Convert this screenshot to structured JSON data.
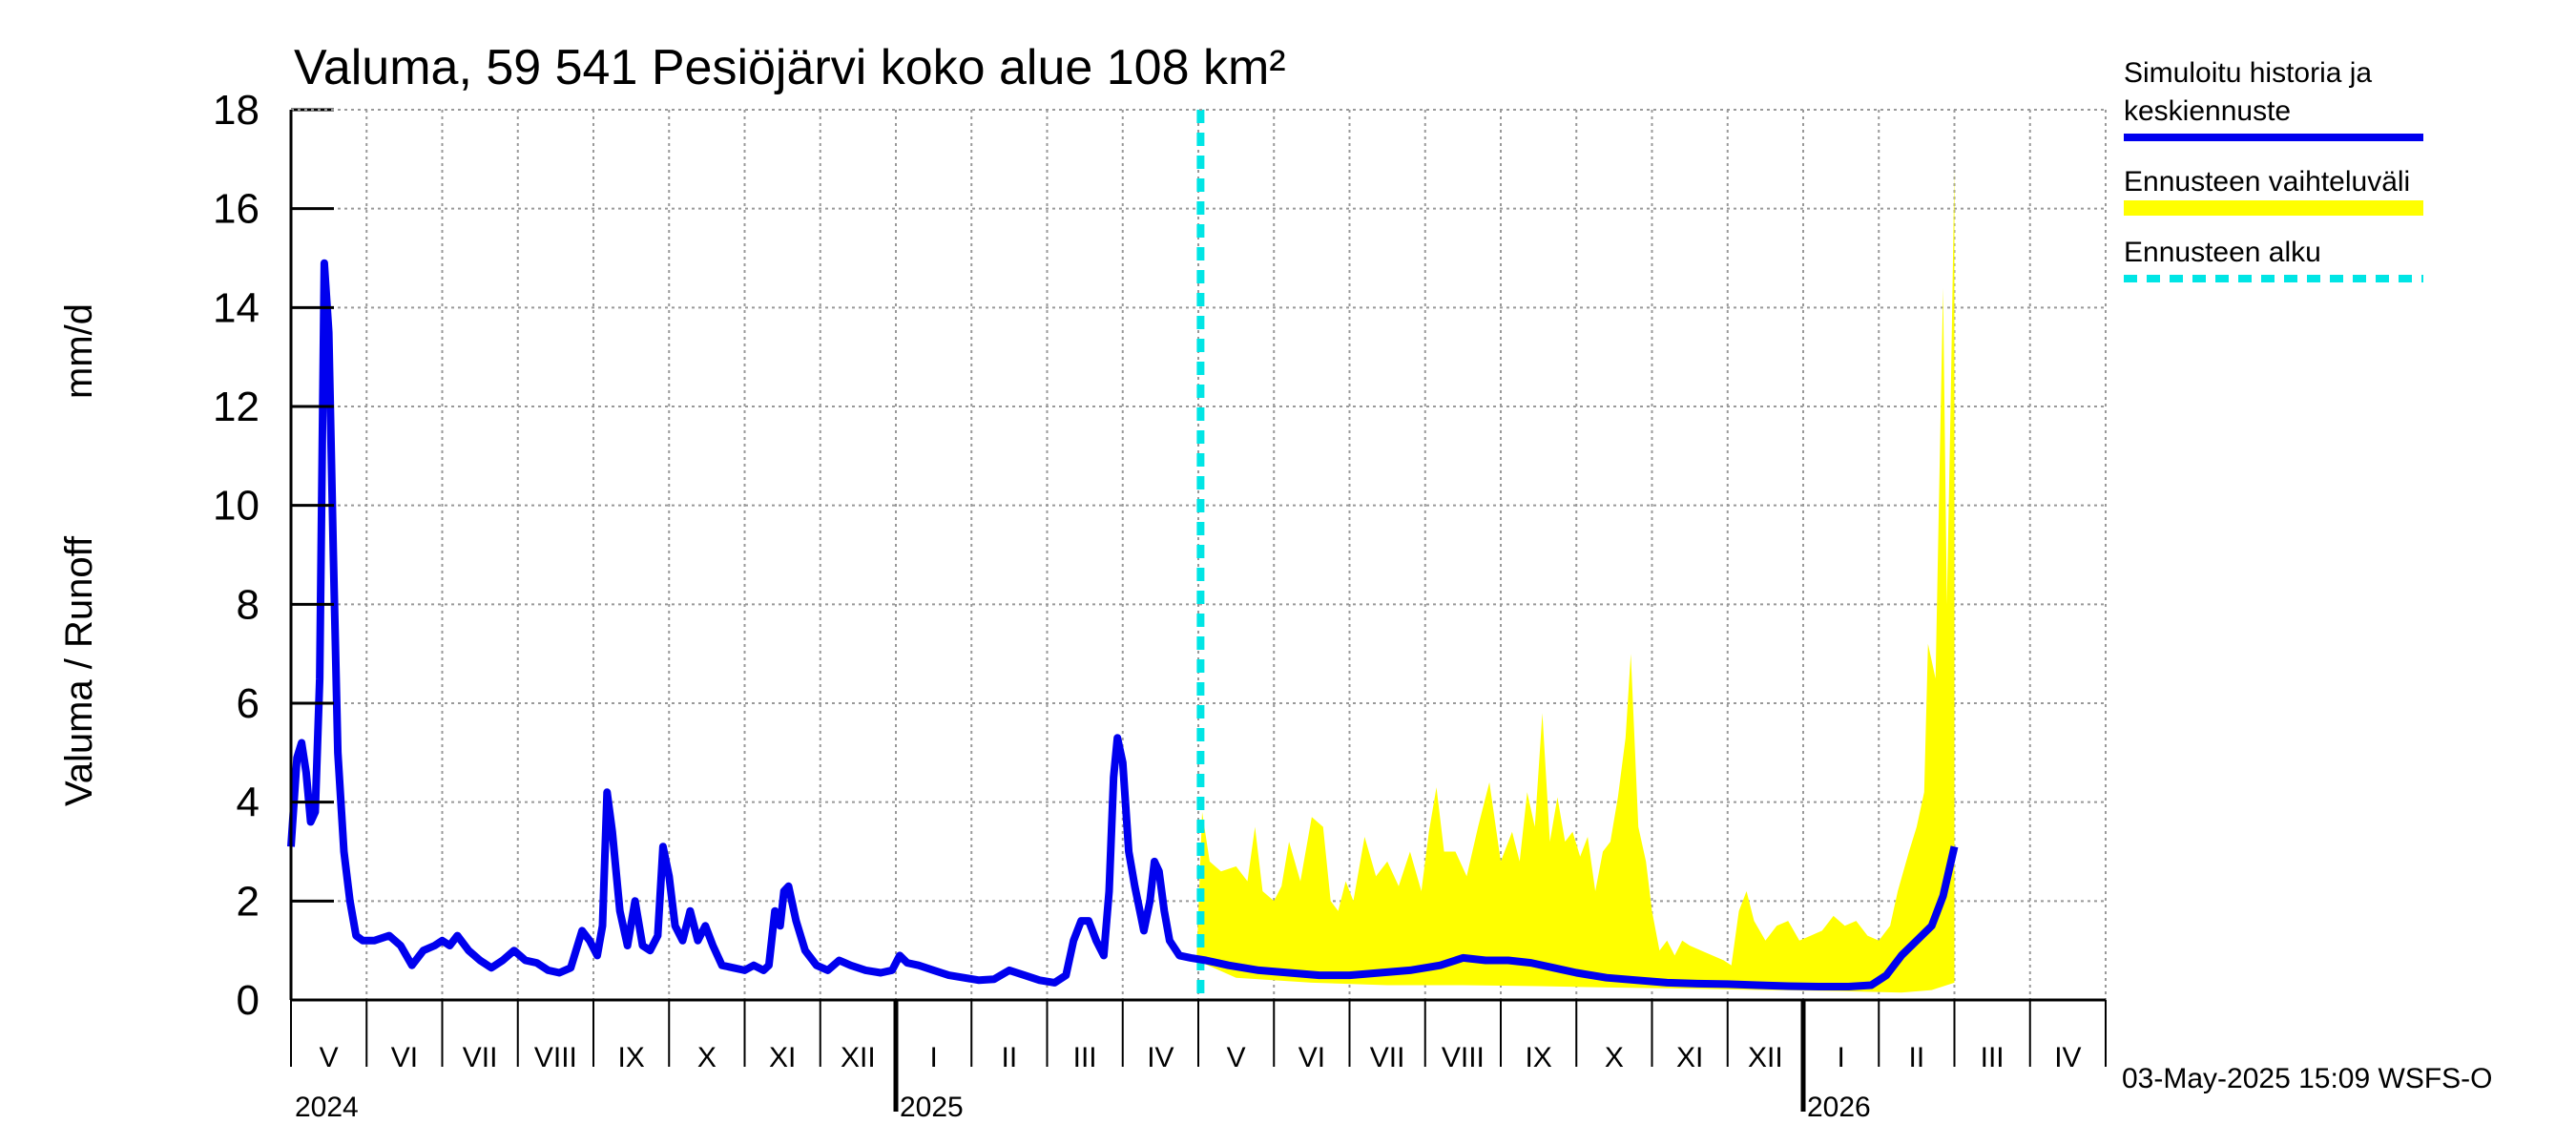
{
  "chart_data": {
    "type": "line",
    "title": "Valuma, 59 541 Pesiöjärvi koko alue 108 km²",
    "ylabel_left": "Valuma / Runoff",
    "ylabel_right": "mm/d",
    "ylim": [
      0,
      18
    ],
    "yticks": [
      "0",
      "2",
      "4",
      "6",
      "8",
      "10",
      "12",
      "14",
      "16",
      "18"
    ],
    "x_months": [
      "V",
      "VI",
      "VII",
      "VIII",
      "IX",
      "X",
      "XI",
      "XII",
      "I",
      "II",
      "III",
      "IV",
      "V",
      "VI",
      "VII",
      "VIII",
      "IX",
      "X",
      "XI",
      "XII",
      "I",
      "II",
      "III",
      "IV"
    ],
    "x_years": [
      "2024",
      "2025",
      "2026"
    ],
    "grid": true,
    "legend_position": "right",
    "forecast_start_month_index": 12.03,
    "series": [
      {
        "name": "Simuloitu historia ja keskiennuste",
        "color": "#0000ee",
        "points": [
          [
            0.0,
            3.1
          ],
          [
            0.08,
            4.9
          ],
          [
            0.14,
            5.2
          ],
          [
            0.2,
            4.6
          ],
          [
            0.26,
            3.6
          ],
          [
            0.32,
            3.8
          ],
          [
            0.38,
            6.5
          ],
          [
            0.44,
            14.9
          ],
          [
            0.5,
            13.5
          ],
          [
            0.56,
            9.0
          ],
          [
            0.62,
            5.0
          ],
          [
            0.7,
            3.0
          ],
          [
            0.78,
            2.0
          ],
          [
            0.86,
            1.3
          ],
          [
            0.95,
            1.2
          ],
          [
            1.1,
            1.2
          ],
          [
            1.3,
            1.3
          ],
          [
            1.45,
            1.1
          ],
          [
            1.6,
            0.7
          ],
          [
            1.75,
            1.0
          ],
          [
            1.9,
            1.1
          ],
          [
            2.0,
            1.2
          ],
          [
            2.1,
            1.1
          ],
          [
            2.2,
            1.3
          ],
          [
            2.35,
            1.0
          ],
          [
            2.5,
            0.8
          ],
          [
            2.65,
            0.65
          ],
          [
            2.8,
            0.8
          ],
          [
            2.95,
            1.0
          ],
          [
            3.1,
            0.8
          ],
          [
            3.25,
            0.75
          ],
          [
            3.4,
            0.6
          ],
          [
            3.55,
            0.55
          ],
          [
            3.7,
            0.65
          ],
          [
            3.85,
            1.4
          ],
          [
            3.95,
            1.2
          ],
          [
            4.05,
            0.9
          ],
          [
            4.12,
            1.5
          ],
          [
            4.18,
            4.2
          ],
          [
            4.25,
            3.4
          ],
          [
            4.35,
            1.8
          ],
          [
            4.45,
            1.1
          ],
          [
            4.55,
            2.0
          ],
          [
            4.65,
            1.1
          ],
          [
            4.75,
            1.0
          ],
          [
            4.85,
            1.3
          ],
          [
            4.92,
            3.1
          ],
          [
            5.0,
            2.5
          ],
          [
            5.08,
            1.5
          ],
          [
            5.18,
            1.2
          ],
          [
            5.28,
            1.8
          ],
          [
            5.38,
            1.2
          ],
          [
            5.48,
            1.5
          ],
          [
            5.58,
            1.1
          ],
          [
            5.7,
            0.7
          ],
          [
            5.85,
            0.65
          ],
          [
            6.0,
            0.6
          ],
          [
            6.12,
            0.7
          ],
          [
            6.25,
            0.6
          ],
          [
            6.32,
            0.7
          ],
          [
            6.4,
            1.8
          ],
          [
            6.47,
            1.5
          ],
          [
            6.52,
            2.2
          ],
          [
            6.58,
            2.3
          ],
          [
            6.68,
            1.6
          ],
          [
            6.8,
            1.0
          ],
          [
            6.95,
            0.7
          ],
          [
            7.1,
            0.6
          ],
          [
            7.25,
            0.8
          ],
          [
            7.4,
            0.7
          ],
          [
            7.6,
            0.6
          ],
          [
            7.8,
            0.55
          ],
          [
            7.95,
            0.6
          ],
          [
            8.05,
            0.9
          ],
          [
            8.15,
            0.75
          ],
          [
            8.3,
            0.7
          ],
          [
            8.5,
            0.6
          ],
          [
            8.7,
            0.5
          ],
          [
            8.9,
            0.45
          ],
          [
            9.1,
            0.4
          ],
          [
            9.3,
            0.42
          ],
          [
            9.5,
            0.6
          ],
          [
            9.7,
            0.5
          ],
          [
            9.9,
            0.4
          ],
          [
            10.1,
            0.35
          ],
          [
            10.25,
            0.5
          ],
          [
            10.35,
            1.2
          ],
          [
            10.45,
            1.6
          ],
          [
            10.55,
            1.6
          ],
          [
            10.65,
            1.2
          ],
          [
            10.75,
            0.9
          ],
          [
            10.82,
            2.2
          ],
          [
            10.88,
            4.5
          ],
          [
            10.93,
            5.3
          ],
          [
            11.0,
            4.8
          ],
          [
            11.08,
            3.0
          ],
          [
            11.16,
            2.3
          ],
          [
            11.24,
            1.7
          ],
          [
            11.28,
            1.4
          ],
          [
            11.36,
            2.0
          ],
          [
            11.42,
            2.8
          ],
          [
            11.48,
            2.6
          ],
          [
            11.55,
            1.8
          ],
          [
            11.62,
            1.2
          ],
          [
            11.75,
            0.9
          ],
          [
            11.9,
            0.85
          ],
          [
            12.1,
            0.8
          ],
          [
            12.4,
            0.7
          ],
          [
            12.8,
            0.6
          ],
          [
            13.2,
            0.55
          ],
          [
            13.6,
            0.5
          ],
          [
            14.0,
            0.5
          ],
          [
            14.4,
            0.55
          ],
          [
            14.8,
            0.6
          ],
          [
            15.2,
            0.7
          ],
          [
            15.5,
            0.85
          ],
          [
            15.8,
            0.8
          ],
          [
            16.1,
            0.8
          ],
          [
            16.4,
            0.75
          ],
          [
            16.7,
            0.65
          ],
          [
            17.0,
            0.55
          ],
          [
            17.4,
            0.45
          ],
          [
            17.8,
            0.4
          ],
          [
            18.2,
            0.35
          ],
          [
            18.6,
            0.33
          ],
          [
            19.0,
            0.32
          ],
          [
            19.4,
            0.3
          ],
          [
            19.8,
            0.28
          ],
          [
            20.2,
            0.27
          ],
          [
            20.6,
            0.27
          ],
          [
            20.9,
            0.3
          ],
          [
            21.1,
            0.5
          ],
          [
            21.3,
            0.9
          ],
          [
            21.5,
            1.2
          ],
          [
            21.7,
            1.5
          ],
          [
            21.85,
            2.1
          ],
          [
            22.0,
            3.1
          ]
        ]
      },
      {
        "name": "Ennusteen vaihteluväli",
        "color": "#ffff00",
        "upper": [
          [
            11.98,
            0.9
          ],
          [
            12.05,
            3.8
          ],
          [
            12.15,
            2.8
          ],
          [
            12.3,
            2.6
          ],
          [
            12.5,
            2.7
          ],
          [
            12.65,
            2.4
          ],
          [
            12.75,
            3.5
          ],
          [
            12.85,
            2.2
          ],
          [
            13.0,
            2.0
          ],
          [
            13.1,
            2.3
          ],
          [
            13.2,
            3.2
          ],
          [
            13.35,
            2.4
          ],
          [
            13.5,
            3.7
          ],
          [
            13.65,
            3.5
          ],
          [
            13.75,
            2.0
          ],
          [
            13.85,
            1.8
          ],
          [
            13.95,
            2.4
          ],
          [
            14.05,
            2.0
          ],
          [
            14.2,
            3.3
          ],
          [
            14.35,
            2.5
          ],
          [
            14.5,
            2.8
          ],
          [
            14.65,
            2.3
          ],
          [
            14.8,
            3.0
          ],
          [
            14.95,
            2.2
          ],
          [
            15.05,
            3.4
          ],
          [
            15.15,
            4.3
          ],
          [
            15.25,
            3.0
          ],
          [
            15.4,
            3.0
          ],
          [
            15.55,
            2.5
          ],
          [
            15.7,
            3.5
          ],
          [
            15.85,
            4.4
          ],
          [
            16.0,
            2.8
          ],
          [
            16.15,
            3.4
          ],
          [
            16.25,
            2.8
          ],
          [
            16.35,
            4.2
          ],
          [
            16.45,
            3.5
          ],
          [
            16.55,
            5.8
          ],
          [
            16.65,
            3.2
          ],
          [
            16.75,
            4.1
          ],
          [
            16.85,
            3.2
          ],
          [
            16.95,
            3.4
          ],
          [
            17.05,
            2.9
          ],
          [
            17.15,
            3.3
          ],
          [
            17.25,
            2.2
          ],
          [
            17.35,
            3.0
          ],
          [
            17.45,
            3.2
          ],
          [
            17.55,
            4.1
          ],
          [
            17.65,
            5.3
          ],
          [
            17.72,
            7.0
          ],
          [
            17.82,
            3.5
          ],
          [
            17.92,
            2.8
          ],
          [
            18.0,
            1.8
          ],
          [
            18.1,
            1.0
          ],
          [
            18.2,
            1.2
          ],
          [
            18.3,
            0.9
          ],
          [
            18.4,
            1.2
          ],
          [
            18.5,
            1.1
          ],
          [
            18.65,
            1.0
          ],
          [
            18.8,
            0.9
          ],
          [
            18.95,
            0.8
          ],
          [
            19.05,
            0.7
          ],
          [
            19.15,
            1.8
          ],
          [
            19.25,
            2.2
          ],
          [
            19.35,
            1.6
          ],
          [
            19.5,
            1.2
          ],
          [
            19.65,
            1.5
          ],
          [
            19.8,
            1.6
          ],
          [
            19.95,
            1.2
          ],
          [
            20.1,
            1.3
          ],
          [
            20.25,
            1.4
          ],
          [
            20.4,
            1.7
          ],
          [
            20.55,
            1.5
          ],
          [
            20.7,
            1.6
          ],
          [
            20.85,
            1.3
          ],
          [
            21.0,
            1.2
          ],
          [
            21.15,
            1.5
          ],
          [
            21.25,
            2.2
          ],
          [
            21.4,
            3.0
          ],
          [
            21.5,
            3.5
          ],
          [
            21.6,
            4.2
          ],
          [
            21.65,
            7.2
          ],
          [
            21.75,
            6.5
          ],
          [
            21.85,
            14.4
          ],
          [
            21.9,
            8.0
          ],
          [
            21.95,
            12.0
          ],
          [
            22.0,
            16.8
          ]
        ],
        "lower": [
          [
            11.98,
            0.8
          ],
          [
            12.5,
            0.45
          ],
          [
            13.5,
            0.35
          ],
          [
            14.5,
            0.3
          ],
          [
            15.5,
            0.3
          ],
          [
            16.5,
            0.28
          ],
          [
            17.5,
            0.25
          ],
          [
            18.5,
            0.23
          ],
          [
            19.5,
            0.2
          ],
          [
            20.5,
            0.18
          ],
          [
            21.3,
            0.15
          ],
          [
            21.7,
            0.2
          ],
          [
            22.0,
            0.35
          ]
        ]
      },
      {
        "name": "Ennusteen alku",
        "color": "#00e5e5"
      }
    ]
  },
  "legend": {
    "history_label_line1": "Simuloitu historia ja",
    "history_label_line2": "keskiennuste",
    "range_label": "Ennusteen vaihteluväli",
    "start_label": "Ennusteen alku"
  },
  "footer": {
    "timestamp": "03-May-2025 15:09 WSFS-O"
  }
}
